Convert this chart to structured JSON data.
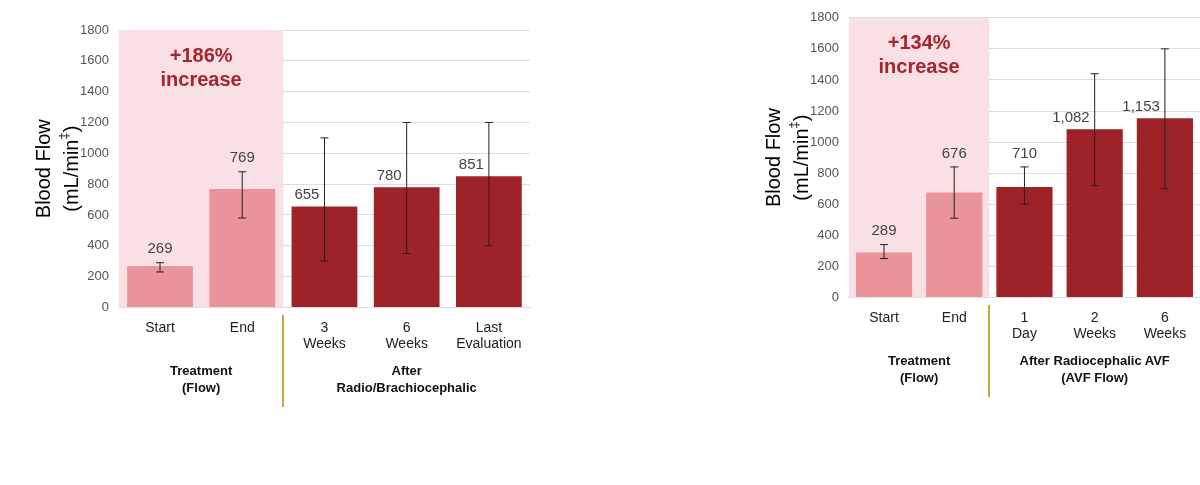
{
  "chart_data": [
    {
      "type": "bar",
      "ylabel": "Blood Flow\n(mL/min$^{‡}$)",
      "categories": [
        "Start",
        "End",
        "3 Weeks",
        "6 Weeks",
        "Last Evaluation"
      ],
      "values": [
        269,
        769,
        655,
        780,
        851
      ],
      "colors": [
        "#e9939b",
        "#e9939b",
        "#9e2328",
        "#9e2328",
        "#9e2328"
      ],
      "errors": [
        [
          230,
          290
        ],
        [
          580,
          880
        ],
        [
          300,
          1100
        ],
        [
          350,
          1200
        ],
        [
          400,
          1200
        ]
      ],
      "value_labels": [
        "269",
        "769",
        "655",
        "780",
        "851"
      ],
      "ylim": [
        0,
        1800
      ],
      "yticks": [
        0,
        200,
        400,
        600,
        800,
        1000,
        1200,
        1400,
        1600,
        1800
      ],
      "grid": "y",
      "bands": [
        {
          "axis": "x",
          "from": "Start",
          "to": "End",
          "color": "#f8e0e4"
        }
      ],
      "annotations": [
        "+186%\nincrease",
        "Treatment\n(Flow)",
        "After\nRadio/Brachiocephalic"
      ]
    },
    {
      "type": "bar",
      "ylabel": "Blood Flow\n(mL/min$^{‡}$)",
      "categories": [
        "Start",
        "End",
        "1 Day",
        "2 Weeks",
        "6 Weeks"
      ],
      "values": [
        289,
        676,
        710,
        1082,
        1153
      ],
      "colors": [
        "#e9939b",
        "#e9939b",
        "#9e2328",
        "#9e2328",
        "#9e2328"
      ],
      "errors": [
        [
          250,
          340
        ],
        [
          510,
          840
        ],
        [
          600,
          840
        ],
        [
          720,
          1440
        ],
        [
          700,
          1600
        ]
      ],
      "value_labels": [
        "289",
        "676",
        "710",
        "1,082",
        "1,153"
      ],
      "ylim": [
        0,
        1800
      ],
      "yticks": [
        0,
        200,
        400,
        600,
        800,
        1000,
        1200,
        1400,
        1600,
        1800
      ],
      "grid": "y",
      "bands": [
        {
          "axis": "x",
          "from": "Start",
          "to": "End",
          "color": "#f8e0e4"
        }
      ],
      "annotations": [
        "+134%\nincrease",
        "Treatment\n(Flow)",
        "After Radiocephalic AVF\n(AVF Flow)"
      ]
    }
  ]
}
